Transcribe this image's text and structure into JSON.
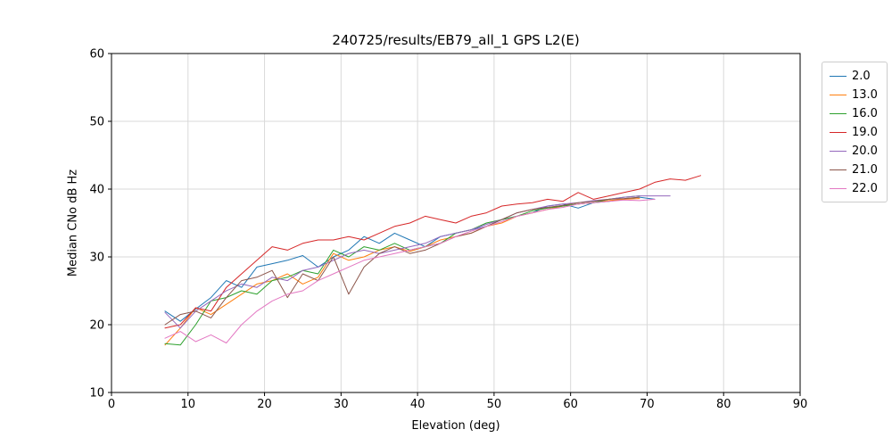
{
  "figure": {
    "background": "#ffffff",
    "grid_color": "#d9d9d9",
    "frame_color": "#000000"
  },
  "chart_data": {
    "type": "line",
    "title": "240725/results/EB79_all_1 GPS L2(E)",
    "xlabel": "Elevation (deg)",
    "ylabel": "Median CNo dB Hz",
    "xlim": [
      0,
      90
    ],
    "ylim": [
      10,
      60
    ],
    "xticks": [
      0,
      10,
      20,
      30,
      40,
      50,
      60,
      70,
      80,
      90
    ],
    "yticks": [
      10,
      20,
      30,
      40,
      50,
      60
    ],
    "grid": true,
    "legend_position": "outside-right",
    "series": [
      {
        "name": "2.0",
        "color": "#1f77b4",
        "x": [
          7,
          9,
          11,
          13,
          15,
          17,
          19,
          21,
          23,
          25,
          27,
          29,
          31,
          33,
          35,
          37,
          39,
          41,
          43,
          45,
          47,
          49,
          51,
          53,
          55,
          57,
          59,
          61,
          63,
          65,
          67,
          69,
          71
        ],
        "y": [
          22.0,
          20.5,
          22.3,
          24.0,
          26.5,
          25.5,
          28.5,
          29.0,
          29.5,
          30.2,
          28.5,
          30.0,
          31.0,
          33.0,
          32.0,
          33.5,
          32.5,
          31.5,
          33.0,
          33.5,
          34.0,
          34.5,
          35.5,
          36.0,
          36.5,
          37.5,
          37.8,
          37.2,
          38.0,
          38.2,
          38.5,
          38.8,
          38.5
        ]
      },
      {
        "name": "13.0",
        "color": "#ff7f0e",
        "x": [
          7,
          9,
          11,
          13,
          15,
          17,
          19,
          21,
          23,
          25,
          27,
          29,
          31,
          33,
          35,
          37,
          39,
          41,
          43,
          45,
          47,
          49,
          51,
          53,
          55,
          57,
          59,
          61,
          63,
          65,
          67,
          69
        ],
        "y": [
          17.0,
          19.5,
          22.5,
          21.5,
          23.0,
          24.5,
          26.0,
          26.5,
          27.5,
          26.0,
          27.0,
          30.5,
          29.5,
          30.0,
          31.0,
          31.5,
          30.8,
          31.5,
          32.5,
          33.0,
          33.5,
          34.5,
          35.0,
          36.0,
          36.5,
          37.0,
          37.5,
          37.8,
          38.0,
          38.3,
          38.5,
          38.6
        ]
      },
      {
        "name": "16.0",
        "color": "#2ca02c",
        "x": [
          7,
          9,
          11,
          13,
          15,
          17,
          19,
          21,
          23,
          25,
          27,
          29,
          31,
          33,
          35,
          37,
          39,
          41,
          43,
          45,
          47,
          49,
          51,
          53,
          55,
          57,
          59,
          61,
          63,
          65,
          67,
          69
        ],
        "y": [
          17.2,
          17.0,
          20.0,
          23.5,
          24.0,
          25.0,
          24.5,
          26.5,
          27.0,
          28.0,
          27.5,
          31.0,
          30.0,
          31.5,
          31.0,
          32.0,
          31.0,
          31.5,
          32.0,
          33.5,
          34.0,
          35.0,
          35.5,
          36.0,
          36.8,
          37.2,
          37.5,
          37.8,
          38.0,
          38.5,
          38.8,
          39.0
        ]
      },
      {
        "name": "19.0",
        "color": "#d62728",
        "x": [
          7,
          9,
          11,
          13,
          15,
          17,
          19,
          21,
          23,
          25,
          27,
          29,
          31,
          33,
          35,
          37,
          39,
          41,
          43,
          45,
          47,
          49,
          51,
          53,
          55,
          57,
          59,
          61,
          63,
          65,
          67,
          69,
          71,
          73,
          75,
          77
        ],
        "y": [
          19.5,
          20.0,
          22.5,
          22.0,
          25.5,
          27.5,
          29.5,
          31.5,
          31.0,
          32.0,
          32.5,
          32.5,
          33.0,
          32.5,
          33.5,
          34.5,
          35.0,
          36.0,
          35.5,
          35.0,
          36.0,
          36.5,
          37.5,
          37.8,
          38.0,
          38.5,
          38.2,
          39.5,
          38.5,
          39.0,
          39.5,
          40.0,
          41.0,
          41.5,
          41.3,
          42.0
        ]
      },
      {
        "name": "20.0",
        "color": "#9467bd",
        "x": [
          7,
          9,
          11,
          13,
          15,
          17,
          19,
          21,
          23,
          25,
          27,
          29,
          31,
          33,
          35,
          37,
          39,
          41,
          43,
          45,
          47,
          49,
          51,
          53,
          55,
          57,
          59,
          61,
          63,
          65,
          67,
          69,
          71,
          73
        ],
        "y": [
          21.8,
          19.5,
          22.0,
          23.5,
          25.0,
          26.0,
          25.5,
          27.0,
          26.5,
          28.0,
          28.5,
          29.5,
          30.5,
          31.0,
          30.5,
          31.0,
          31.5,
          32.0,
          33.0,
          33.5,
          34.0,
          34.8,
          35.5,
          36.5,
          37.0,
          37.5,
          37.8,
          38.0,
          38.3,
          38.5,
          38.8,
          39.0,
          39.0,
          39.0
        ]
      },
      {
        "name": "21.0",
        "color": "#8c564b",
        "x": [
          7,
          9,
          11,
          13,
          15,
          17,
          19,
          21,
          23,
          25,
          27,
          29,
          31,
          33,
          35,
          37,
          39,
          41,
          43,
          45,
          47,
          49,
          51,
          53,
          55,
          57,
          59,
          61,
          63,
          65,
          67,
          69
        ],
        "y": [
          20.0,
          21.5,
          22.0,
          21.0,
          24.0,
          26.5,
          27.0,
          28.0,
          24.0,
          27.5,
          26.5,
          30.0,
          24.5,
          28.5,
          30.5,
          31.5,
          30.5,
          31.0,
          32.0,
          33.0,
          33.5,
          34.5,
          35.5,
          36.5,
          37.0,
          37.3,
          37.6,
          38.0,
          38.2,
          38.5,
          38.6,
          38.8
        ]
      },
      {
        "name": "22.0",
        "color": "#e377c2",
        "x": [
          7,
          9,
          11,
          13,
          15,
          17,
          19,
          21,
          23,
          25,
          27,
          29,
          31,
          33,
          35,
          37,
          39,
          41,
          43,
          45,
          47,
          49,
          51,
          53,
          55,
          57,
          59,
          61,
          63,
          65,
          67,
          69,
          71
        ],
        "y": [
          18.0,
          19.0,
          17.5,
          18.5,
          17.3,
          20.0,
          22.0,
          23.5,
          24.5,
          25.0,
          26.5,
          27.5,
          28.5,
          29.5,
          30.0,
          30.5,
          31.0,
          31.5,
          32.0,
          33.0,
          33.8,
          34.5,
          35.2,
          36.0,
          36.5,
          37.0,
          37.3,
          37.8,
          38.0,
          38.2,
          38.4,
          38.3,
          38.5
        ]
      }
    ]
  }
}
